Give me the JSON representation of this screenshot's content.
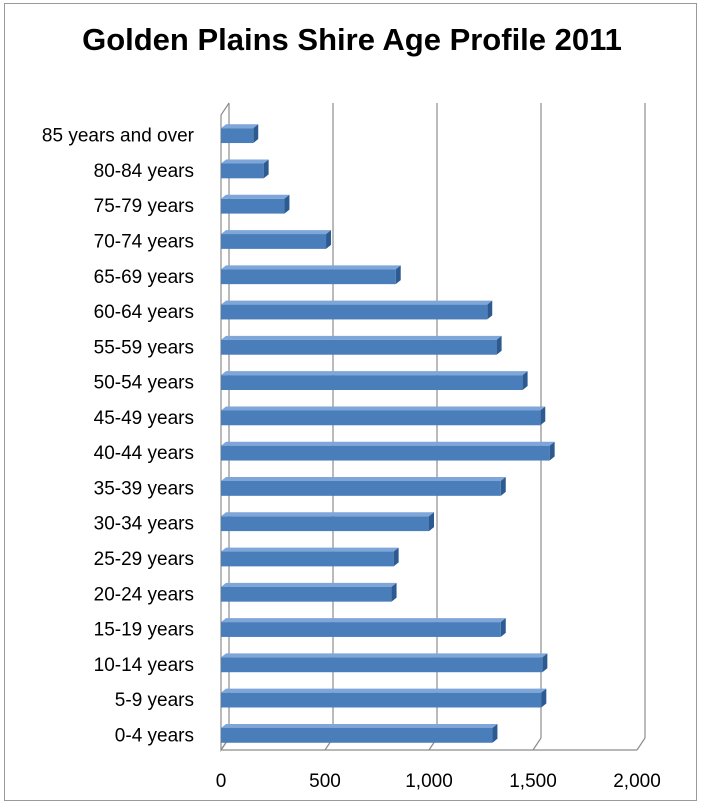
{
  "chart_data": {
    "type": "bar",
    "orientation": "horizontal",
    "title": "Golden Plains Shire Age Profile 2011",
    "xlabel": "",
    "ylabel": "",
    "xlim": [
      0,
      2000
    ],
    "x_ticks": [
      "0",
      "500",
      "1,000",
      "1,500",
      "2,000"
    ],
    "x_tick_values": [
      0,
      500,
      1000,
      1500,
      2000
    ],
    "grid": true,
    "legend": "none",
    "style": "3d",
    "bar_color": "#4a7ebb",
    "categories": [
      "85 years and over",
      "80-84 years",
      "75-79 years",
      "70-74 years",
      "65-69 years",
      "60-64 years",
      "55-59 years",
      "50-54 years",
      "45-49 years",
      "40-44 years",
      "35-39 years",
      "30-34 years",
      "25-29 years",
      "20-24 years",
      "15-19 years",
      "10-14 years",
      "5-9 years",
      "0-4 years"
    ],
    "values": [
      155,
      205,
      305,
      505,
      840,
      1280,
      1325,
      1450,
      1535,
      1580,
      1345,
      1000,
      830,
      820,
      1345,
      1545,
      1540,
      1305
    ]
  }
}
